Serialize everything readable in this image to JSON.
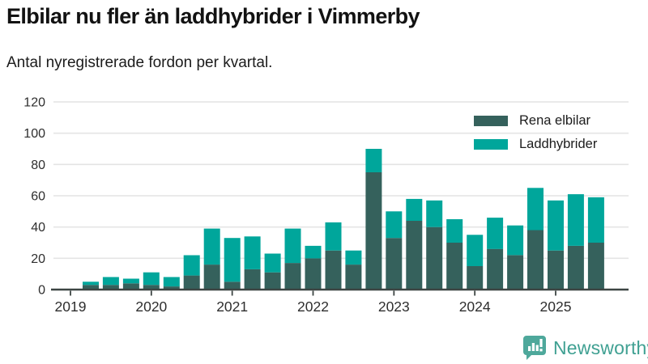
{
  "header": {
    "title": "Elbilar nu fler än laddhybrider i Vimmerby",
    "subtitle": "Antal nyregistrerade fordon per kvartal."
  },
  "footer": {
    "brand": "Newsworthy",
    "brand_text_color": "#3fa092",
    "brand_icon_color": "#4ea89b"
  },
  "colors": {
    "axis": "#3d4543",
    "grid": "#e4e4e4",
    "tick_text": "#2e2e2e"
  },
  "chart_data": {
    "type": "bar",
    "stacked": true,
    "title": "Elbilar nu fler än laddhybrider i Vimmerby",
    "subtitle": "Antal nyregistrerade fordon per kvartal.",
    "xlabel": "",
    "ylabel": "",
    "ylim": [
      0,
      120
    ],
    "yticks": [
      0,
      20,
      40,
      60,
      80,
      100,
      120
    ],
    "grid": "horizontal",
    "legend_position": "upper right",
    "categories": [
      "2019 Q1",
      "2019 Q2",
      "2019 Q3",
      "2019 Q4",
      "2020 Q1",
      "2020 Q2",
      "2020 Q3",
      "2020 Q4",
      "2021 Q1",
      "2021 Q2",
      "2021 Q3",
      "2021 Q4",
      "2022 Q1",
      "2022 Q2",
      "2022 Q3",
      "2022 Q4",
      "2023 Q1",
      "2023 Q2",
      "2023 Q3",
      "2023 Q4",
      "2024 Q1",
      "2024 Q2",
      "2024 Q3",
      "2024 Q4",
      "2025 Q1",
      "2025 Q2",
      "2025 Q3"
    ],
    "x_tick_labels": [
      "2019",
      "2020",
      "2021",
      "2022",
      "2023",
      "2024",
      "2025"
    ],
    "x_tick_every_n_categories": 4,
    "series": [
      {
        "name": "Rena elbilar",
        "color": "#35615c",
        "values": [
          0,
          3,
          3,
          4,
          3,
          2,
          9,
          16,
          5,
          13,
          11,
          17,
          20,
          25,
          16,
          75,
          33,
          44,
          40,
          30,
          15,
          26,
          22,
          38,
          25,
          28,
          30
        ]
      },
      {
        "name": "Laddhybrider",
        "color": "#00a69b",
        "values": [
          0,
          2,
          5,
          3,
          8,
          6,
          13,
          23,
          28,
          21,
          12,
          22,
          8,
          18,
          9,
          15,
          17,
          14,
          17,
          15,
          20,
          20,
          19,
          27,
          32,
          33,
          29
        ]
      }
    ]
  }
}
